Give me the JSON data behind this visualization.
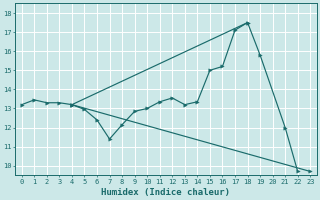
{
  "xlabel": "Humidex (Indice chaleur)",
  "xlim": [
    -0.5,
    23.5
  ],
  "ylim": [
    9.5,
    18.5
  ],
  "xticks": [
    0,
    1,
    2,
    3,
    4,
    5,
    6,
    7,
    8,
    9,
    10,
    11,
    12,
    13,
    14,
    15,
    16,
    17,
    18,
    19,
    20,
    21,
    22,
    23
  ],
  "yticks": [
    10,
    11,
    12,
    13,
    14,
    15,
    16,
    17,
    18
  ],
  "bg_color": "#cce8e8",
  "grid_color": "#b0d8d8",
  "line_color": "#1a6b6b",
  "series1_x": [
    0,
    1,
    2,
    3,
    4,
    5,
    6,
    7,
    8,
    9,
    10,
    11,
    12,
    13,
    14,
    15,
    16,
    17,
    18,
    19,
    21,
    22
  ],
  "series1_y": [
    13.2,
    13.45,
    13.3,
    13.3,
    13.2,
    12.95,
    12.4,
    11.4,
    12.15,
    12.85,
    13.0,
    13.35,
    13.55,
    13.2,
    13.35,
    15.0,
    15.2,
    17.1,
    17.5,
    15.8,
    12.0,
    9.7
  ],
  "series2_x": [
    4,
    18
  ],
  "series2_y": [
    13.2,
    17.5
  ],
  "series3_x": [
    4,
    23
  ],
  "series3_y": [
    13.2,
    9.7
  ]
}
